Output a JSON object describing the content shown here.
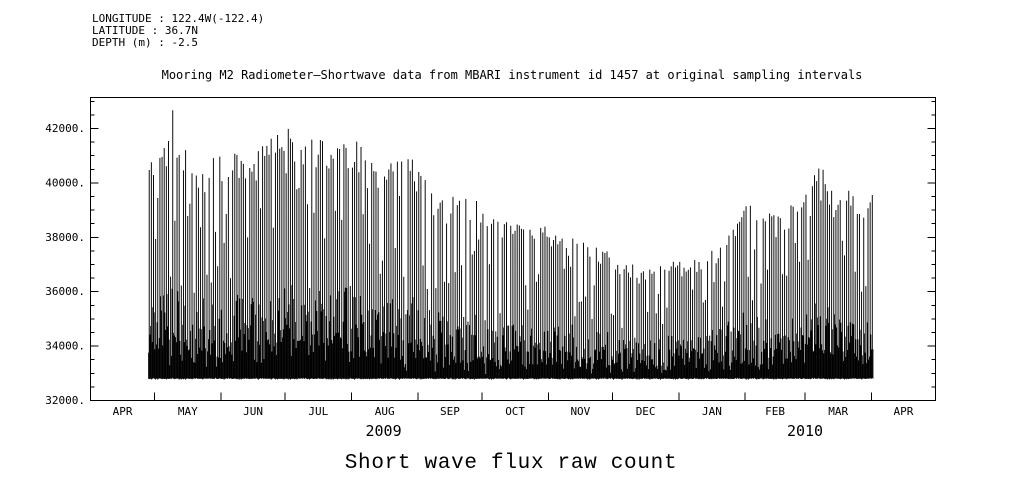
{
  "header": {
    "longitude": "LONGITUDE : 122.4W(-122.4)",
    "latitude": "LATITUDE : 36.7N",
    "depth": "DEPTH (m) : -2.5"
  },
  "caption": "Short wave flux raw count",
  "colors": {
    "foreground": "#000000",
    "background": "#ffffff"
  },
  "chart_data": {
    "type": "line",
    "title": "Mooring M2 Radiometer—Shortwave data from MBARI instrument id 1457 at original sampling intervals",
    "xlabel": "",
    "ylabel": "",
    "legend": "none",
    "grid": "off",
    "y_axis": {
      "min": 32000,
      "max": 43140,
      "major_ticks": [
        32000,
        34000,
        36000,
        38000,
        40000,
        42000
      ],
      "tick_labels": [
        "32000.",
        "34000.",
        "36000.",
        "38000.",
        "40000.",
        "42000."
      ],
      "minor_tick_step": 500
    },
    "x_axis": {
      "month_labels": [
        "APR",
        "MAY",
        "JUN",
        "JUL",
        "AUG",
        "SEP",
        "OCT",
        "NOV",
        "DEC",
        "JAN",
        "FEB",
        "MAR",
        "APR"
      ],
      "days_per_month": [
        30,
        31,
        30,
        31,
        31,
        30,
        31,
        30,
        31,
        31,
        28,
        31,
        30
      ],
      "total_days": 395,
      "year_labels": [
        {
          "text": "2009",
          "center_day": 137
        },
        {
          "text": "2010",
          "center_day": 334
        }
      ]
    },
    "series": {
      "name": "shortwave-flux-raw-count",
      "color": "#000000",
      "baseline": 32800,
      "start_day": 27,
      "end_day": 365,
      "random_seed": 20094,
      "peak_envelope": [
        [
          27,
          40700
        ],
        [
          34,
          41600
        ],
        [
          38,
          42600
        ],
        [
          44,
          41200
        ],
        [
          52,
          40600
        ],
        [
          60,
          41300
        ],
        [
          68,
          41200
        ],
        [
          76,
          41000
        ],
        [
          84,
          41900
        ],
        [
          92,
          42300
        ],
        [
          100,
          41600
        ],
        [
          108,
          41900
        ],
        [
          116,
          41500
        ],
        [
          124,
          41600
        ],
        [
          132,
          40600
        ],
        [
          140,
          41000
        ],
        [
          148,
          41100
        ],
        [
          156,
          40300
        ],
        [
          164,
          39600
        ],
        [
          172,
          39500
        ],
        [
          180,
          39500
        ],
        [
          190,
          38700
        ],
        [
          200,
          38600
        ],
        [
          210,
          38500
        ],
        [
          220,
          38100
        ],
        [
          230,
          38000
        ],
        [
          240,
          37600
        ],
        [
          250,
          37100
        ],
        [
          258,
          36900
        ],
        [
          266,
          37000
        ],
        [
          274,
          37100
        ],
        [
          282,
          37300
        ],
        [
          290,
          37600
        ],
        [
          298,
          38300
        ],
        [
          306,
          39300
        ],
        [
          314,
          38900
        ],
        [
          322,
          38800
        ],
        [
          328,
          39400
        ],
        [
          334,
          39800
        ],
        [
          340,
          40800
        ],
        [
          346,
          39900
        ],
        [
          356,
          39800
        ],
        [
          365,
          39700
        ]
      ]
    }
  }
}
